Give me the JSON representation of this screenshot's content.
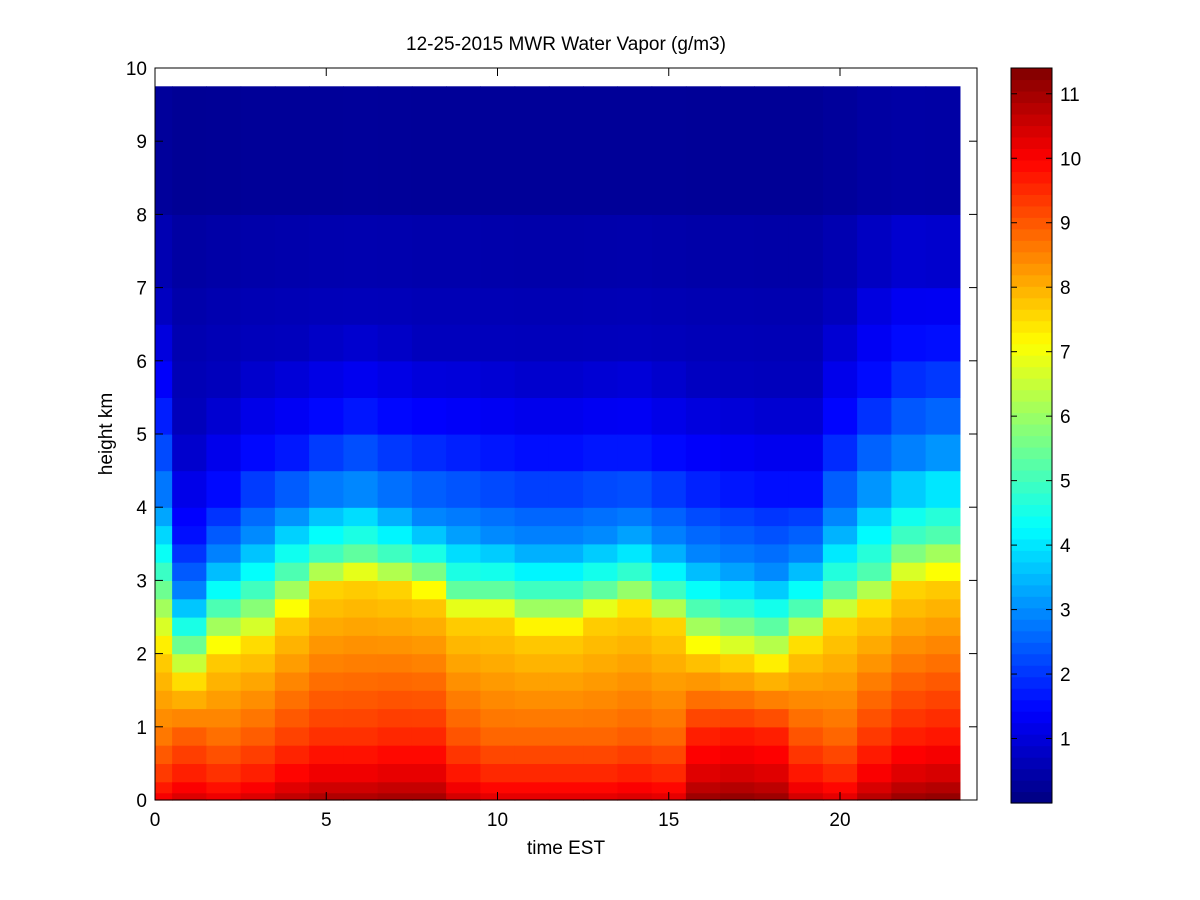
{
  "chart_data": {
    "type": "heatmap",
    "title": "12-25-2015 MWR Water Vapor (g/m3)",
    "xlabel": "time EST",
    "ylabel": "height km",
    "xlim": [
      0,
      24
    ],
    "ylim": [
      0,
      10
    ],
    "xticks": [
      "0",
      "5",
      "10",
      "15",
      "20"
    ],
    "yticks": [
      "0",
      "1",
      "2",
      "3",
      "4",
      "5",
      "6",
      "7",
      "8",
      "9",
      "10"
    ],
    "colormap": "jet",
    "colorbar": {
      "min": 0,
      "max": 11.4,
      "ticks": [
        "1",
        "2",
        "3",
        "4",
        "5",
        "6",
        "7",
        "8",
        "9",
        "10",
        "11"
      ]
    },
    "grid": false,
    "x_centers": [
      0,
      1,
      2,
      3,
      4,
      5,
      6,
      7,
      8,
      9,
      10,
      11,
      12,
      13,
      14,
      15,
      16,
      17,
      18,
      19,
      20,
      21,
      22,
      23
    ],
    "x_data_max": 23.5,
    "y_data_max": 9.75,
    "profile_heights": [
      0,
      0.1,
      0.25,
      0.5,
      0.75,
      1.0,
      1.25,
      1.5,
      1.75,
      2.0,
      2.25,
      2.5,
      2.75,
      3.0,
      3.25,
      3.5,
      3.75,
      4.0,
      4.5,
      5.0,
      5.5,
      6.0,
      6.5,
      7.0,
      8.0,
      9.75
    ],
    "profiles": [
      {
        "surface": 10.2,
        "z1": 2.0,
        "z2": 3.0,
        "z3": 4.0,
        "z4": 5.4,
        "z5": 6.8
      },
      {
        "surface": 10.5,
        "z1": 1.6,
        "z2": 2.2,
        "z3": 2.8,
        "z4": 3.6,
        "z5": 5.0
      },
      {
        "surface": 10.3,
        "z1": 2.0,
        "z2": 2.6,
        "z3": 3.3,
        "z4": 4.1,
        "z5": 5.6
      },
      {
        "surface": 10.5,
        "z1": 2.1,
        "z2": 2.8,
        "z3": 3.6,
        "z4": 4.6,
        "z5": 6.0
      },
      {
        "surface": 10.8,
        "z1": 2.5,
        "z2": 3.1,
        "z3": 3.9,
        "z4": 4.8,
        "z5": 6.2
      },
      {
        "surface": 11.0,
        "z1": 2.9,
        "z2": 3.3,
        "z3": 4.1,
        "z4": 5.1,
        "z5": 6.4
      },
      {
        "surface": 11.0,
        "z1": 3.0,
        "z2": 3.4,
        "z3": 4.2,
        "z4": 5.3,
        "z5": 6.5
      },
      {
        "surface": 11.1,
        "z1": 2.9,
        "z2": 3.3,
        "z3": 4.0,
        "z4": 5.1,
        "z5": 6.4
      },
      {
        "surface": 11.1,
        "z1": 2.8,
        "z2": 3.2,
        "z3": 3.8,
        "z4": 5.0,
        "z5": 6.2
      },
      {
        "surface": 10.6,
        "z1": 2.5,
        "z2": 2.9,
        "z3": 3.7,
        "z4": 4.9,
        "z5": 6.2
      },
      {
        "surface": 10.4,
        "z1": 2.5,
        "z2": 2.9,
        "z3": 3.6,
        "z4": 4.8,
        "z5": 6.1
      },
      {
        "surface": 10.4,
        "z1": 2.3,
        "z2": 2.8,
        "z3": 3.5,
        "z4": 4.7,
        "z5": 6.0
      },
      {
        "surface": 10.4,
        "z1": 2.3,
        "z2": 2.8,
        "z3": 3.5,
        "z4": 4.7,
        "z5": 6.0
      },
      {
        "surface": 10.4,
        "z1": 2.5,
        "z2": 2.9,
        "z3": 3.6,
        "z4": 4.8,
        "z5": 6.1
      },
      {
        "surface": 10.5,
        "z1": 2.6,
        "z2": 3.0,
        "z3": 3.7,
        "z4": 4.8,
        "z5": 6.2
      },
      {
        "surface": 10.4,
        "z1": 2.4,
        "z2": 2.8,
        "z3": 3.5,
        "z4": 4.6,
        "z5": 6.0
      },
      {
        "surface": 11.2,
        "z1": 2.0,
        "z2": 2.6,
        "z3": 3.3,
        "z4": 4.4,
        "z5": 5.8
      },
      {
        "surface": 11.3,
        "z1": 1.9,
        "z2": 2.5,
        "z3": 3.2,
        "z4": 4.3,
        "z5": 5.7
      },
      {
        "surface": 11.2,
        "z1": 1.8,
        "z2": 2.4,
        "z3": 3.1,
        "z4": 4.2,
        "z5": 5.6
      },
      {
        "surface": 10.6,
        "z1": 2.1,
        "z2": 2.6,
        "z3": 3.3,
        "z4": 4.2,
        "z5": 5.6
      },
      {
        "surface": 10.4,
        "z1": 2.4,
        "z2": 2.9,
        "z3": 3.8,
        "z4": 5.0,
        "z5": 6.7
      },
      {
        "surface": 10.9,
        "z1": 2.6,
        "z2": 3.1,
        "z3": 4.3,
        "z4": 5.6,
        "z5": 7.6
      },
      {
        "surface": 11.2,
        "z1": 2.9,
        "z2": 3.5,
        "z3": 4.6,
        "z4": 6.1,
        "z5": 7.9
      },
      {
        "surface": 11.3,
        "z1": 3.0,
        "z2": 3.6,
        "z3": 4.8,
        "z4": 6.2,
        "z5": 7.8
      }
    ]
  }
}
